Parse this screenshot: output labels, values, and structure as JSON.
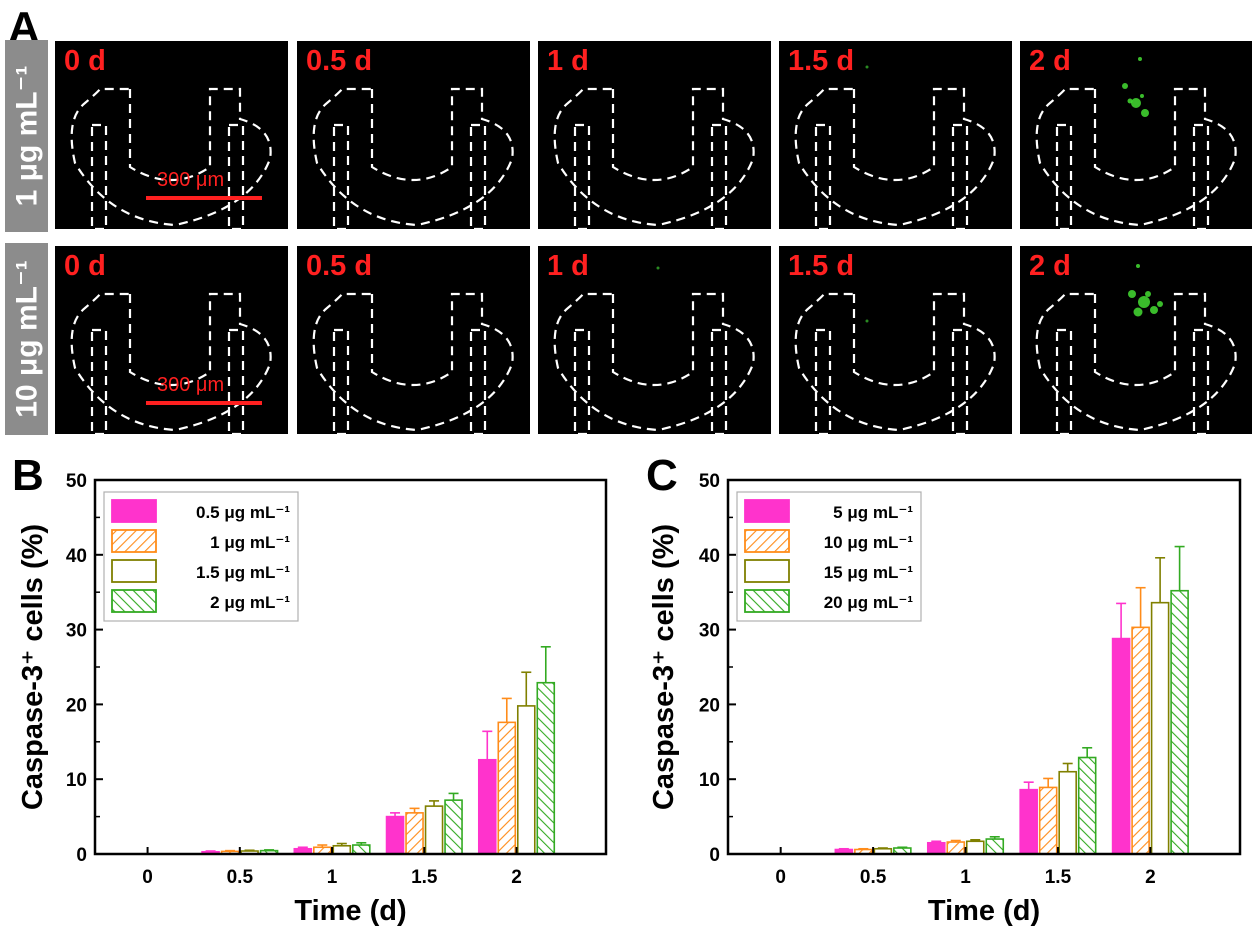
{
  "panel_a": {
    "letter": "A",
    "rows": [
      {
        "label": "1 μg mL⁻¹",
        "scale_label": "300 μm",
        "times": [
          "0 d",
          "0.5 d",
          "1 d",
          "1.5 d",
          "2 d"
        ]
      },
      {
        "label": "10 μg mL⁻¹",
        "scale_label": "300 μm",
        "times": [
          "0 d",
          "0.5 d",
          "1 d",
          "1.5 d",
          "2 d"
        ]
      }
    ]
  },
  "chart_data": [
    {
      "panel": "B",
      "type": "bar",
      "xlabel": "Time (d)",
      "ylabel": "Caspase-3⁺ cells (%)",
      "categories": [
        "0",
        "0.5",
        "1",
        "1.5",
        "2"
      ],
      "ylim": [
        0,
        50
      ],
      "yticks": [
        "0",
        "10",
        "20",
        "30",
        "40",
        "50"
      ],
      "legend_position": "top-left",
      "series": [
        {
          "name": "0.5 μg mL⁻¹",
          "color": "#ff33cc",
          "pattern": "solid",
          "values": [
            0,
            0.3,
            0.7,
            5.0,
            12.6
          ],
          "errors": [
            0,
            0.1,
            0.2,
            0.5,
            3.8
          ]
        },
        {
          "name": "1 μg mL⁻¹",
          "color": "#ff8c1a",
          "pattern": "hatch-right",
          "values": [
            0,
            0.35,
            0.9,
            5.5,
            17.6
          ],
          "errors": [
            0,
            0.1,
            0.3,
            0.6,
            3.2
          ]
        },
        {
          "name": "1.5 μg mL⁻¹",
          "color": "#808000",
          "pattern": "open",
          "values": [
            0,
            0.4,
            1.1,
            6.4,
            19.8
          ],
          "errors": [
            0,
            0.1,
            0.3,
            0.7,
            4.5
          ]
        },
        {
          "name": "2 μg mL⁻¹",
          "color": "#33aa22",
          "pattern": "hatch-left",
          "values": [
            0,
            0.45,
            1.2,
            7.2,
            22.9
          ],
          "errors": [
            0,
            0.1,
            0.3,
            0.9,
            4.8
          ]
        }
      ]
    },
    {
      "panel": "C",
      "type": "bar",
      "xlabel": "Time (d)",
      "ylabel": "Caspase-3⁺ cells (%)",
      "categories": [
        "0",
        "0.5",
        "1",
        "1.5",
        "2"
      ],
      "ylim": [
        0,
        50
      ],
      "yticks": [
        "0",
        "10",
        "20",
        "30",
        "40",
        "50"
      ],
      "legend_position": "top-left",
      "series": [
        {
          "name": "5 μg mL⁻¹",
          "color": "#ff33cc",
          "pattern": "solid",
          "values": [
            0,
            0.6,
            1.5,
            8.6,
            28.8
          ],
          "errors": [
            0,
            0.1,
            0.2,
            1.0,
            4.7
          ]
        },
        {
          "name": "10 μg mL⁻¹",
          "color": "#ff8c1a",
          "pattern": "hatch-right",
          "values": [
            0,
            0.6,
            1.6,
            8.9,
            30.3
          ],
          "errors": [
            0,
            0.1,
            0.2,
            1.2,
            5.3
          ]
        },
        {
          "name": "15 μg mL⁻¹",
          "color": "#808000",
          "pattern": "open",
          "values": [
            0,
            0.7,
            1.7,
            11.0,
            33.6
          ],
          "errors": [
            0,
            0.1,
            0.2,
            1.1,
            6.0
          ]
        },
        {
          "name": "20 μg mL⁻¹",
          "color": "#33aa22",
          "pattern": "hatch-left",
          "values": [
            0,
            0.8,
            2.0,
            12.9,
            35.2
          ],
          "errors": [
            0,
            0.1,
            0.3,
            1.3,
            5.9
          ]
        }
      ]
    }
  ]
}
